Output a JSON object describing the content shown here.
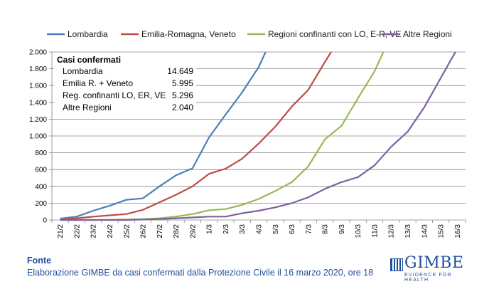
{
  "chart_data": {
    "type": "line",
    "title": "",
    "xlabel": "",
    "ylabel": "",
    "ylim": [
      0,
      2000
    ],
    "yticks": [
      0,
      200,
      400,
      600,
      800,
      1000,
      1200,
      1400,
      1600,
      1800,
      2000
    ],
    "ytick_labels": [
      "0",
      "200",
      "400",
      "600",
      "800",
      "1.000",
      "1.200",
      "1.400",
      "1.600",
      "1.800",
      "2.000"
    ],
    "categories": [
      "21/2",
      "22/2",
      "23/2",
      "24/2",
      "25/2",
      "26/2",
      "27/2",
      "28/2",
      "29/2",
      "1/3",
      "2/3",
      "3/3",
      "4/3",
      "5/3",
      "6/3",
      "7/3",
      "8/3",
      "9/3",
      "10/3",
      "11/3",
      "12/3",
      "13/3",
      "14/3",
      "15/3",
      "16/3"
    ],
    "grid": "horizontal",
    "legend_position": "top",
    "series": [
      {
        "name": "Lombardia",
        "color": "#4a7ebb",
        "values": [
          16,
          40,
          110,
          170,
          240,
          258,
          400,
          531,
          615,
          984,
          1254,
          1520,
          1820,
          2251,
          null,
          null,
          null,
          null,
          null,
          null,
          null,
          null,
          null,
          null,
          null
        ]
      },
      {
        "name": "Emilia-Romagna, Veneto",
        "color": "#be4b48",
        "values": [
          2,
          20,
          40,
          55,
          70,
          120,
          210,
          300,
          400,
          550,
          610,
          730,
          910,
          1110,
          1350,
          1550,
          1880,
          2200,
          null,
          null,
          null,
          null,
          null,
          null,
          null
        ]
      },
      {
        "name": "Regioni confinanti con LO, E-R, VE",
        "color": "#98b954",
        "values": [
          0,
          0,
          0,
          2,
          5,
          10,
          20,
          40,
          70,
          115,
          130,
          180,
          250,
          345,
          450,
          640,
          960,
          1120,
          1450,
          1770,
          2200,
          null,
          null,
          null,
          null
        ]
      },
      {
        "name": "Altre Regioni",
        "color": "#7d60a0",
        "values": [
          0,
          0,
          0,
          0,
          0,
          5,
          10,
          20,
          30,
          40,
          40,
          80,
          110,
          150,
          200,
          270,
          370,
          450,
          510,
          650,
          870,
          1050,
          1340,
          1690,
          2040
        ]
      }
    ]
  },
  "stats": {
    "title": "Casi confermati",
    "rows": [
      {
        "label": "Lombardia",
        "value": "14.649"
      },
      {
        "label": "Emilia R. + Veneto",
        "value": "5.995"
      },
      {
        "label": "Reg. confinanti LO, ER, VE",
        "value": "5.296"
      },
      {
        "label": "Altre Regioni",
        "value": "2.040"
      }
    ]
  },
  "footer": {
    "title": "Fonte",
    "text": "Elaborazione GIMBE da casi confermati dalla Protezione Civile il 16 marzo 2020, ore 18"
  },
  "logo": {
    "name": "GIMBE",
    "tagline": "EVIDENCE FOR HEALTH",
    "color": "#1f4e9a"
  }
}
